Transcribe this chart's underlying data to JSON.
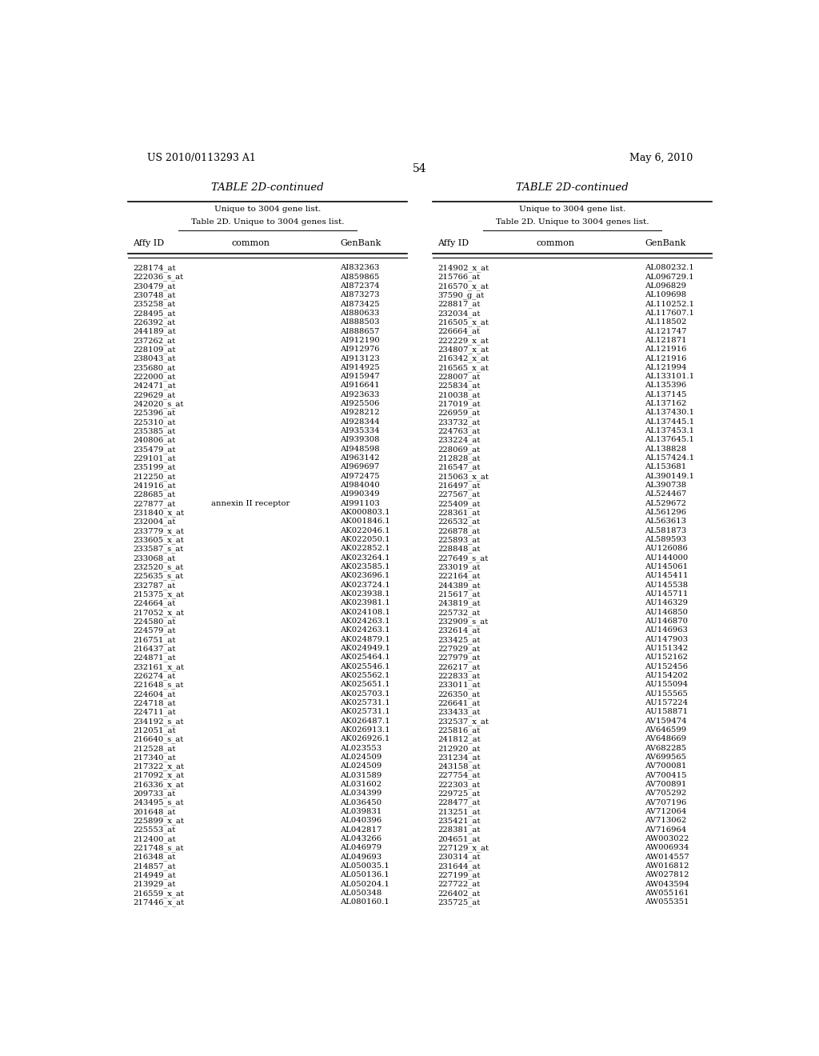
{
  "header_left": "US 2010/0113293 A1",
  "header_right": "May 6, 2010",
  "page_number": "54",
  "table_title": "TABLE 2D-continued",
  "subtitle1": "Unique to 3004 gene list.",
  "subtitle2": "Table 2D. Unique to 3004 genes list.",
  "col_headers": [
    "Affy ID",
    "common",
    "GenBank"
  ],
  "left_data": [
    [
      "228174_at",
      "",
      "AI832363"
    ],
    [
      "222036_s_at",
      "",
      "AI859865"
    ],
    [
      "230479_at",
      "",
      "AI872374"
    ],
    [
      "230748_at",
      "",
      "AI873273"
    ],
    [
      "235258_at",
      "",
      "AI873425"
    ],
    [
      "228495_at",
      "",
      "AI880633"
    ],
    [
      "226392_at",
      "",
      "AI888503"
    ],
    [
      "244189_at",
      "",
      "AI888657"
    ],
    [
      "237262_at",
      "",
      "AI912190"
    ],
    [
      "228109_at",
      "",
      "AI912976"
    ],
    [
      "238043_at",
      "",
      "AI913123"
    ],
    [
      "235680_at",
      "",
      "AI914925"
    ],
    [
      "222000_at",
      "",
      "AI915947"
    ],
    [
      "242471_at",
      "",
      "AI916641"
    ],
    [
      "229629_at",
      "",
      "AI923633"
    ],
    [
      "242020_s_at",
      "",
      "AI925506"
    ],
    [
      "225396_at",
      "",
      "AI928212"
    ],
    [
      "225310_at",
      "",
      "AI928344"
    ],
    [
      "235385_at",
      "",
      "AI935334"
    ],
    [
      "240806_at",
      "",
      "AI939308"
    ],
    [
      "235479_at",
      "",
      "AI948598"
    ],
    [
      "229101_at",
      "",
      "AI963142"
    ],
    [
      "235199_at",
      "",
      "AI969697"
    ],
    [
      "212250_at",
      "",
      "AI972475"
    ],
    [
      "241916_at",
      "",
      "AI984040"
    ],
    [
      "228685_at",
      "",
      "AI990349"
    ],
    [
      "227877_at",
      "annexin II receptor",
      "AI991103"
    ],
    [
      "231840_x_at",
      "",
      "AK000803.1"
    ],
    [
      "232004_at",
      "",
      "AK001846.1"
    ],
    [
      "233779_x_at",
      "",
      "AK022046.1"
    ],
    [
      "233605_x_at",
      "",
      "AK022050.1"
    ],
    [
      "233587_s_at",
      "",
      "AK022852.1"
    ],
    [
      "233068_at",
      "",
      "AK023264.1"
    ],
    [
      "232520_s_at",
      "",
      "AK023585.1"
    ],
    [
      "225635_s_at",
      "",
      "AK023696.1"
    ],
    [
      "232787_at",
      "",
      "AK023724.1"
    ],
    [
      "215375_x_at",
      "",
      "AK023938.1"
    ],
    [
      "224664_at",
      "",
      "AK023981.1"
    ],
    [
      "217052_x_at",
      "",
      "AK024108.1"
    ],
    [
      "224580_at",
      "",
      "AK024263.1"
    ],
    [
      "224579_at",
      "",
      "AK024263.1"
    ],
    [
      "216751_at",
      "",
      "AK024879.1"
    ],
    [
      "216437_at",
      "",
      "AK024949.1"
    ],
    [
      "224871_at",
      "",
      "AK025464.1"
    ],
    [
      "232161_x_at",
      "",
      "AK025546.1"
    ],
    [
      "226274_at",
      "",
      "AK025562.1"
    ],
    [
      "221648_s_at",
      "",
      "AK025651.1"
    ],
    [
      "224604_at",
      "",
      "AK025703.1"
    ],
    [
      "224718_at",
      "",
      "AK025731.1"
    ],
    [
      "224711_at",
      "",
      "AK025731.1"
    ],
    [
      "234192_s_at",
      "",
      "AK026487.1"
    ],
    [
      "212051_at",
      "",
      "AK026913.1"
    ],
    [
      "216640_s_at",
      "",
      "AK026926.1"
    ],
    [
      "212528_at",
      "",
      "AL023553"
    ],
    [
      "217340_at",
      "",
      "AL024509"
    ],
    [
      "217322_x_at",
      "",
      "AL024509"
    ],
    [
      "217092_x_at",
      "",
      "AL031589"
    ],
    [
      "216336_x_at",
      "",
      "AL031602"
    ],
    [
      "209733_at",
      "",
      "AL034399"
    ],
    [
      "243495_s_at",
      "",
      "AL036450"
    ],
    [
      "201648_at",
      "",
      "AL039831"
    ],
    [
      "225899_x_at",
      "",
      "AL040396"
    ],
    [
      "225553_at",
      "",
      "AL042817"
    ],
    [
      "212400_at",
      "",
      "AL043266"
    ],
    [
      "221748_s_at",
      "",
      "AL046979"
    ],
    [
      "216348_at",
      "",
      "AL049693"
    ],
    [
      "214857_at",
      "",
      "AL050035.1"
    ],
    [
      "214949_at",
      "",
      "AL050136.1"
    ],
    [
      "213929_at",
      "",
      "AL050204.1"
    ],
    [
      "216559_x_at",
      "",
      "AL050348"
    ],
    [
      "217446_x_at",
      "",
      "AL080160.1"
    ]
  ],
  "right_data": [
    [
      "214902_x_at",
      "",
      "AL080232.1"
    ],
    [
      "215766_at",
      "",
      "AL096729.1"
    ],
    [
      "216570_x_at",
      "",
      "AL096829"
    ],
    [
      "37590_g_at",
      "",
      "AL109698"
    ],
    [
      "228817_at",
      "",
      "AL110252.1"
    ],
    [
      "232034_at",
      "",
      "AL117607.1"
    ],
    [
      "216505_x_at",
      "",
      "AL118502"
    ],
    [
      "226664_at",
      "",
      "AL121747"
    ],
    [
      "222229_x_at",
      "",
      "AL121871"
    ],
    [
      "234807_x_at",
      "",
      "AL121916"
    ],
    [
      "216342_x_at",
      "",
      "AL121916"
    ],
    [
      "216565_x_at",
      "",
      "AL121994"
    ],
    [
      "228007_at",
      "",
      "AL133101.1"
    ],
    [
      "225834_at",
      "",
      "AL135396"
    ],
    [
      "210038_at",
      "",
      "AL137145"
    ],
    [
      "217019_at",
      "",
      "AL137162"
    ],
    [
      "226959_at",
      "",
      "AL137430.1"
    ],
    [
      "233732_at",
      "",
      "AL137445.1"
    ],
    [
      "224763_at",
      "",
      "AL137453.1"
    ],
    [
      "233224_at",
      "",
      "AL137645.1"
    ],
    [
      "228069_at",
      "",
      "AL138828"
    ],
    [
      "212828_at",
      "",
      "AL157424.1"
    ],
    [
      "216547_at",
      "",
      "AL153681"
    ],
    [
      "215063_x_at",
      "",
      "AL390149.1"
    ],
    [
      "216497_at",
      "",
      "AL390738"
    ],
    [
      "227567_at",
      "",
      "AL524467"
    ],
    [
      "225409_at",
      "",
      "AL529672"
    ],
    [
      "228361_at",
      "",
      "AL561296"
    ],
    [
      "226532_at",
      "",
      "AL563613"
    ],
    [
      "226878_at",
      "",
      "AL581873"
    ],
    [
      "225893_at",
      "",
      "AL589593"
    ],
    [
      "228848_at",
      "",
      "AU126086"
    ],
    [
      "227649_s_at",
      "",
      "AU144000"
    ],
    [
      "233019_at",
      "",
      "AU145061"
    ],
    [
      "222164_at",
      "",
      "AU145411"
    ],
    [
      "244389_at",
      "",
      "AU145538"
    ],
    [
      "215617_at",
      "",
      "AU145711"
    ],
    [
      "243819_at",
      "",
      "AU146329"
    ],
    [
      "225732_at",
      "",
      "AU146850"
    ],
    [
      "232909_s_at",
      "",
      "AU146870"
    ],
    [
      "232614_at",
      "",
      "AU146963"
    ],
    [
      "233425_at",
      "",
      "AU147903"
    ],
    [
      "227929_at",
      "",
      "AU151342"
    ],
    [
      "227979_at",
      "",
      "AU152162"
    ],
    [
      "226217_at",
      "",
      "AU152456"
    ],
    [
      "222833_at",
      "",
      "AU154202"
    ],
    [
      "233011_at",
      "",
      "AU155094"
    ],
    [
      "226350_at",
      "",
      "AU155565"
    ],
    [
      "226641_at",
      "",
      "AU157224"
    ],
    [
      "233433_at",
      "",
      "AU158871"
    ],
    [
      "232537_x_at",
      "",
      "AV159474"
    ],
    [
      "225816_at",
      "",
      "AV646599"
    ],
    [
      "241812_at",
      "",
      "AV648669"
    ],
    [
      "212920_at",
      "",
      "AV682285"
    ],
    [
      "231234_at",
      "",
      "AV699565"
    ],
    [
      "243158_at",
      "",
      "AV700081"
    ],
    [
      "227754_at",
      "",
      "AV700415"
    ],
    [
      "222303_at",
      "",
      "AV700891"
    ],
    [
      "229725_at",
      "",
      "AV705292"
    ],
    [
      "228477_at",
      "",
      "AV707196"
    ],
    [
      "213251_at",
      "",
      "AV712064"
    ],
    [
      "235421_at",
      "",
      "AV713062"
    ],
    [
      "228381_at",
      "",
      "AV716964"
    ],
    [
      "204651_at",
      "",
      "AW003022"
    ],
    [
      "227129_x_at",
      "",
      "AW006934"
    ],
    [
      "230314_at",
      "",
      "AW014557"
    ],
    [
      "231644_at",
      "",
      "AW016812"
    ],
    [
      "227199_at",
      "",
      "AW027812"
    ],
    [
      "227722_at",
      "",
      "AW043594"
    ],
    [
      "226402_at",
      "",
      "AW055161"
    ],
    [
      "235725_at",
      "",
      "AW055351"
    ]
  ]
}
